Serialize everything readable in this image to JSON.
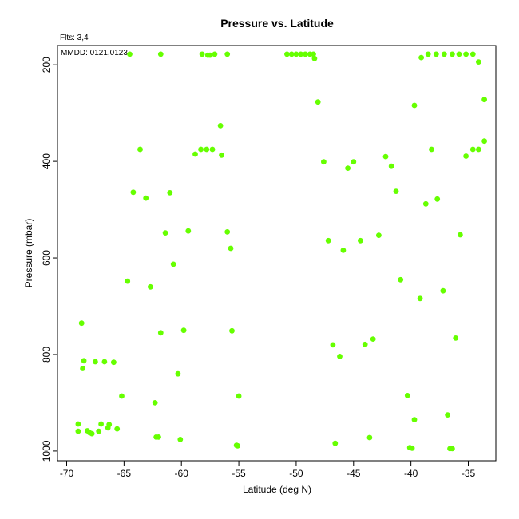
{
  "chart_data": {
    "type": "scatter",
    "title": "Pressure vs. Latitude",
    "xlabel": "Latitude (deg N)",
    "ylabel": "Pressure (mbar)",
    "annotations": [
      "Flts: 3,4",
      "MMDD: 0121,0123"
    ],
    "xlim": [
      -70.8,
      -32.6
    ],
    "ylim": [
      1020,
      160
    ],
    "y_reversed": true,
    "xticks": [
      -70,
      -65,
      -60,
      -55,
      -50,
      -45,
      -40,
      -35
    ],
    "yticks": [
      200,
      400,
      600,
      800,
      1000
    ],
    "grid": false,
    "point_color": "#66ff00",
    "series": [
      {
        "points": [
          [
            -64.5,
            178
          ],
          [
            -61.8,
            178
          ],
          [
            -58.2,
            178
          ],
          [
            -57.7,
            180
          ],
          [
            -57.5,
            180
          ],
          [
            -57.1,
            178
          ],
          [
            -56.0,
            178
          ],
          [
            -50.8,
            178
          ],
          [
            -50.4,
            178
          ],
          [
            -50.0,
            178
          ],
          [
            -49.6,
            178
          ],
          [
            -49.2,
            178
          ],
          [
            -48.8,
            178
          ],
          [
            -48.5,
            178
          ],
          [
            -48.4,
            187
          ],
          [
            -39.1,
            185
          ],
          [
            -38.5,
            178
          ],
          [
            -37.8,
            178
          ],
          [
            -37.1,
            178
          ],
          [
            -36.4,
            178
          ],
          [
            -35.8,
            178
          ],
          [
            -35.2,
            178
          ],
          [
            -34.6,
            178
          ],
          [
            -34.1,
            194
          ],
          [
            -48.1,
            277
          ],
          [
            -39.7,
            284
          ],
          [
            -33.6,
            272
          ],
          [
            -56.6,
            326
          ],
          [
            -63.6,
            375
          ],
          [
            -58.8,
            385
          ],
          [
            -58.3,
            375
          ],
          [
            -57.8,
            375
          ],
          [
            -57.3,
            375
          ],
          [
            -56.5,
            387
          ],
          [
            -47.6,
            401
          ],
          [
            -45.5,
            414
          ],
          [
            -45.0,
            401
          ],
          [
            -42.2,
            390
          ],
          [
            -41.7,
            410
          ],
          [
            -38.2,
            375
          ],
          [
            -35.2,
            389
          ],
          [
            -34.6,
            375
          ],
          [
            -34.1,
            375
          ],
          [
            -33.6,
            358
          ],
          [
            -64.2,
            464
          ],
          [
            -63.1,
            476
          ],
          [
            -61.0,
            465
          ],
          [
            -41.3,
            462
          ],
          [
            -38.7,
            488
          ],
          [
            -37.7,
            478
          ],
          [
            -61.4,
            548
          ],
          [
            -59.4,
            544
          ],
          [
            -56.0,
            546
          ],
          [
            -55.7,
            580
          ],
          [
            -47.2,
            564
          ],
          [
            -45.9,
            584
          ],
          [
            -44.4,
            564
          ],
          [
            -42.8,
            553
          ],
          [
            -35.7,
            552
          ],
          [
            -60.7,
            613
          ],
          [
            -64.7,
            648
          ],
          [
            -62.7,
            660
          ],
          [
            -40.9,
            645
          ],
          [
            -39.2,
            684
          ],
          [
            -37.2,
            668
          ],
          [
            -68.7,
            735
          ],
          [
            -61.8,
            755
          ],
          [
            -59.8,
            750
          ],
          [
            -55.6,
            751
          ],
          [
            -68.5,
            813
          ],
          [
            -67.5,
            815
          ],
          [
            -66.7,
            815
          ],
          [
            -65.9,
            816
          ],
          [
            -68.6,
            829
          ],
          [
            -60.3,
            840
          ],
          [
            -46.8,
            780
          ],
          [
            -46.2,
            804
          ],
          [
            -44.0,
            779
          ],
          [
            -43.3,
            768
          ],
          [
            -36.1,
            766
          ],
          [
            -65.2,
            886
          ],
          [
            -62.3,
            900
          ],
          [
            -55.0,
            886
          ],
          [
            -40.3,
            885
          ],
          [
            -39.7,
            935
          ],
          [
            -36.8,
            925
          ],
          [
            -69.0,
            944
          ],
          [
            -67.0,
            944
          ],
          [
            -66.3,
            945
          ],
          [
            -69.0,
            959
          ],
          [
            -68.2,
            958
          ],
          [
            -68.0,
            962
          ],
          [
            -67.8,
            964
          ],
          [
            -67.2,
            959
          ],
          [
            -66.4,
            952
          ],
          [
            -65.6,
            954
          ],
          [
            -62.2,
            971
          ],
          [
            -62.0,
            971
          ],
          [
            -60.1,
            976
          ],
          [
            -55.2,
            988
          ],
          [
            -55.1,
            989
          ],
          [
            -46.6,
            984
          ],
          [
            -43.6,
            972
          ],
          [
            -40.1,
            993
          ],
          [
            -39.9,
            994
          ],
          [
            -36.6,
            995
          ],
          [
            -36.4,
            995
          ]
        ]
      }
    ]
  }
}
